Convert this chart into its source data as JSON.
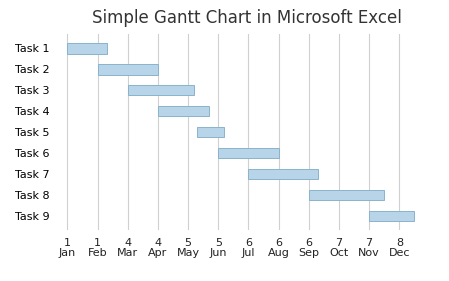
{
  "title": "Simple Gantt Chart in Microsoft Excel",
  "tasks": [
    "Task 1",
    "Task 2",
    "Task 3",
    "Task 4",
    "Task 5",
    "Task 6",
    "Task 7",
    "Task 8",
    "Task 9"
  ],
  "bars": [
    {
      "start": 0.0,
      "end": 1.3
    },
    {
      "start": 1.0,
      "end": 3.0
    },
    {
      "start": 2.0,
      "end": 4.2
    },
    {
      "start": 3.0,
      "end": 4.7
    },
    {
      "start": 4.3,
      "end": 5.2
    },
    {
      "start": 5.0,
      "end": 7.0
    },
    {
      "start": 6.0,
      "end": 8.3
    },
    {
      "start": 8.0,
      "end": 10.5
    },
    {
      "start": 10.0,
      "end": 11.5
    }
  ],
  "bar_color": "#b8d4e8",
  "bar_edge_color": "#8ab4cc",
  "background_color": "#ffffff",
  "grid_color": "#d0d0d0",
  "title_fontsize": 12,
  "label_fontsize": 8,
  "tick_numbers": [
    "1",
    "1",
    "4",
    "4",
    "5",
    "5",
    "6",
    "6",
    "6",
    "7",
    "7",
    "8"
  ],
  "tick_months": [
    "Jan",
    "Feb",
    "Mar",
    "Apr",
    "May",
    "Jun",
    "Jul",
    "Aug",
    "Sep",
    "Oct",
    "Nov",
    "Dec"
  ],
  "xlim": [
    -0.3,
    12.2
  ],
  "ylim": [
    -0.7,
    8.7
  ]
}
